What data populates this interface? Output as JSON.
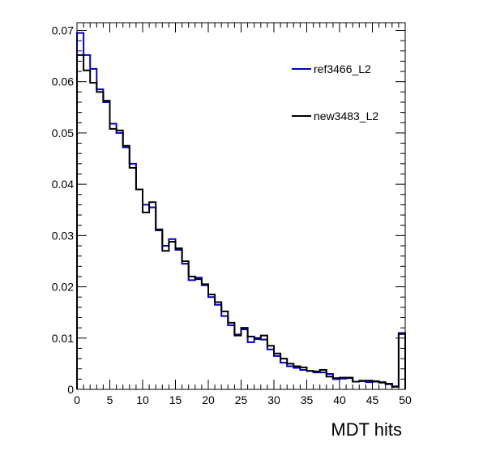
{
  "chart_data": {
    "type": "line",
    "style": "step-histogram",
    "xlabel": "MDT hits",
    "ylabel": "",
    "xlim": [
      0,
      50
    ],
    "ylim": [
      0,
      0.0715
    ],
    "xticks": [
      0,
      5,
      10,
      15,
      20,
      25,
      30,
      35,
      40,
      45,
      50
    ],
    "yticks": [
      0,
      0.01,
      0.02,
      0.03,
      0.04,
      0.05,
      0.06,
      0.07
    ],
    "ytick_labels": [
      "0",
      "0.01",
      "0.02",
      "0.03",
      "0.04",
      "0.05",
      "0.06",
      "0.07"
    ],
    "grid": false,
    "legend_position": "top-right",
    "bin_width": 1,
    "x": [
      0,
      1,
      2,
      3,
      4,
      5,
      6,
      7,
      8,
      9,
      10,
      11,
      12,
      13,
      14,
      15,
      16,
      17,
      18,
      19,
      20,
      21,
      22,
      23,
      24,
      25,
      26,
      27,
      28,
      29,
      30,
      31,
      32,
      33,
      34,
      35,
      36,
      37,
      38,
      39,
      40,
      41,
      42,
      43,
      44,
      45,
      46,
      47,
      48,
      49
    ],
    "series": [
      {
        "name": "ref3466_L2",
        "color": "#0000cc",
        "values": [
          0.0695,
          0.0652,
          0.0625,
          0.0585,
          0.056,
          0.0518,
          0.05,
          0.0472,
          0.044,
          0.039,
          0.036,
          0.0355,
          0.031,
          0.028,
          0.0293,
          0.0272,
          0.0245,
          0.0213,
          0.0218,
          0.0203,
          0.018,
          0.0165,
          0.0143,
          0.0125,
          0.0107,
          0.0117,
          0.0092,
          0.0098,
          0.0097,
          0.0078,
          0.0065,
          0.0052,
          0.0045,
          0.0042,
          0.0038,
          0.0036,
          0.0033,
          0.0033,
          0.003,
          0.002,
          0.0021,
          0.0022,
          0.0015,
          0.0016,
          0.0014,
          0.0015,
          0.0013,
          0.001,
          0.0006,
          0.011
        ]
      },
      {
        "name": "new3483_L2",
        "color": "#000000",
        "values": [
          0.0652,
          0.0622,
          0.0598,
          0.058,
          0.0563,
          0.0508,
          0.0505,
          0.0475,
          0.0432,
          0.039,
          0.0345,
          0.0365,
          0.0312,
          0.027,
          0.0288,
          0.0275,
          0.025,
          0.022,
          0.0215,
          0.0205,
          0.0185,
          0.017,
          0.0152,
          0.013,
          0.0105,
          0.012,
          0.0103,
          0.01,
          0.0105,
          0.0085,
          0.007,
          0.006,
          0.005,
          0.0045,
          0.0043,
          0.0036,
          0.0035,
          0.0038,
          0.0025,
          0.0022,
          0.0023,
          0.0023,
          0.0015,
          0.0017,
          0.0017,
          0.0016,
          0.0014,
          0.0011,
          0.0005,
          0.0108
        ]
      }
    ]
  }
}
